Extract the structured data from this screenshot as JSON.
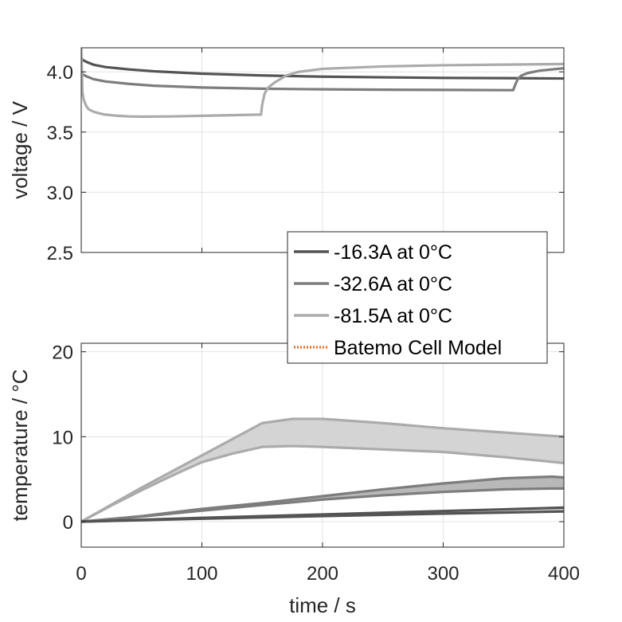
{
  "chart_data": [
    {
      "type": "line",
      "panel": "voltage",
      "ylabel": "voltage / V",
      "xlabel": "",
      "xlim": [
        0,
        400
      ],
      "ylim": [
        2.5,
        4.2
      ],
      "xticks": [
        0,
        100,
        200,
        300,
        400
      ],
      "yticks": [
        2.5,
        3.0,
        3.5,
        4.0
      ],
      "ytick_labels": [
        "2.5",
        "3.0",
        "3.5",
        "4.0"
      ],
      "grid": true,
      "series": [
        {
          "name": "-16.3A at 0°C",
          "color": "#545454",
          "x": [
            0,
            1,
            5,
            10,
            20,
            40,
            60,
            80,
            100,
            150,
            200,
            250,
            300,
            350,
            400
          ],
          "y": [
            4.12,
            4.1,
            4.08,
            4.06,
            4.04,
            4.02,
            4.005,
            3.995,
            3.985,
            3.97,
            3.96,
            3.955,
            3.95,
            3.948,
            3.945
          ]
        },
        {
          "name": "-32.6A at 0°C",
          "color": "#7d7d7d",
          "x": [
            0,
            1,
            5,
            10,
            20,
            40,
            60,
            100,
            150,
            200,
            250,
            300,
            358,
            360,
            362,
            365,
            370,
            380,
            390,
            400
          ],
          "y": [
            4.02,
            3.98,
            3.96,
            3.94,
            3.92,
            3.9,
            3.885,
            3.87,
            3.86,
            3.855,
            3.852,
            3.85,
            3.848,
            3.9,
            3.945,
            3.97,
            3.99,
            4.01,
            4.02,
            4.03
          ]
        },
        {
          "name": "-81.5A at 0°C",
          "color": "#ababab",
          "x": [
            0,
            1,
            2,
            4,
            6,
            10,
            15,
            20,
            30,
            40,
            50,
            75,
            100,
            125,
            149,
            150,
            152,
            155,
            160,
            165,
            170,
            180,
            200,
            250,
            300,
            350,
            400
          ],
          "y": [
            4.2,
            3.83,
            3.77,
            3.72,
            3.69,
            3.67,
            3.655,
            3.645,
            3.635,
            3.63,
            3.628,
            3.63,
            3.635,
            3.64,
            3.645,
            3.73,
            3.82,
            3.87,
            3.91,
            3.94,
            3.97,
            4.0,
            4.025,
            4.045,
            4.055,
            4.06,
            4.065
          ]
        }
      ]
    },
    {
      "type": "area",
      "panel": "temperature",
      "ylabel": "temperature / °C",
      "xlabel": "time / s",
      "xlim": [
        0,
        400
      ],
      "ylim": [
        -3,
        21
      ],
      "xticks": [
        0,
        100,
        200,
        300,
        400
      ],
      "xtick_labels": [
        "0",
        "100",
        "200",
        "300",
        "400"
      ],
      "yticks": [
        0,
        10,
        20
      ],
      "ytick_labels": [
        "0",
        "10",
        "20"
      ],
      "grid": true,
      "series": [
        {
          "name": "-16.3A at 0°C",
          "color": "#545454",
          "fill": "#cfcfcf",
          "x": [
            0,
            100,
            200,
            300,
            400
          ],
          "upper": [
            0,
            0.45,
            0.85,
            1.25,
            1.65
          ],
          "lower": [
            0,
            0.35,
            0.65,
            0.95,
            1.2
          ]
        },
        {
          "name": "-32.6A at 0°C",
          "color": "#7d7d7d",
          "fill": "#b8b8b8",
          "x": [
            0,
            50,
            100,
            150,
            200,
            250,
            300,
            350,
            390,
            400
          ],
          "upper": [
            0,
            0.65,
            1.5,
            2.2,
            3.0,
            3.8,
            4.5,
            5.1,
            5.3,
            5.2
          ],
          "lower": [
            0,
            0.6,
            1.3,
            1.95,
            2.6,
            3.1,
            3.5,
            3.8,
            3.9,
            3.9
          ]
        },
        {
          "name": "-81.5A at 0°C",
          "color": "#ababab",
          "fill": "#d4d4d4",
          "x": [
            0,
            25,
            50,
            75,
            100,
            125,
            150,
            175,
            200,
            250,
            300,
            350,
            400
          ],
          "upper": [
            0,
            2.0,
            4.0,
            5.9,
            7.8,
            9.7,
            11.6,
            12.1,
            12.1,
            11.6,
            11.0,
            10.5,
            10.0
          ],
          "lower": [
            0,
            1.9,
            3.7,
            5.4,
            7.0,
            8.0,
            8.8,
            8.9,
            8.8,
            8.5,
            8.2,
            7.6,
            6.9
          ]
        }
      ]
    }
  ],
  "legend": {
    "placement": "between panels, right",
    "entries": [
      {
        "label": "-16.3A at 0°C",
        "color": "#545454",
        "style": "solid"
      },
      {
        "label": "-32.6A at 0°C",
        "color": "#7d7d7d",
        "style": "solid"
      },
      {
        "label": "-81.5A at 0°C",
        "color": "#ababab",
        "style": "solid"
      },
      {
        "label": "Batemo Cell Model",
        "color": "#e8641e",
        "style": "dotted"
      }
    ]
  }
}
